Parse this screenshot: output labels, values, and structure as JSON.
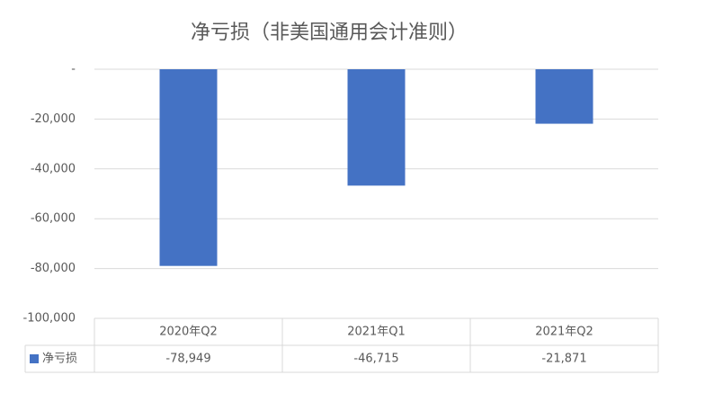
{
  "chart_data": {
    "type": "bar",
    "title": "净亏损（非美国通用会计准则）",
    "categories": [
      "2020年Q2",
      "2021年Q1",
      "2021年Q2"
    ],
    "series": [
      {
        "name": "净亏损",
        "color": "#4472c4",
        "values": [
          -78949,
          -46715,
          -21871
        ],
        "value_labels": [
          "-78,949",
          "-46,715",
          "-21,871"
        ]
      }
    ],
    "ylim": [
      -100000,
      0
    ],
    "yticks": [
      {
        "value": 0,
        "label": "-"
      },
      {
        "value": -20000,
        "label": "-20,000"
      },
      {
        "value": -40000,
        "label": "-40,000"
      },
      {
        "value": -60000,
        "label": "-60,000"
      },
      {
        "value": -80000,
        "label": "-80,000"
      },
      {
        "value": -100000,
        "label": "-100,000"
      }
    ],
    "grid": true
  }
}
